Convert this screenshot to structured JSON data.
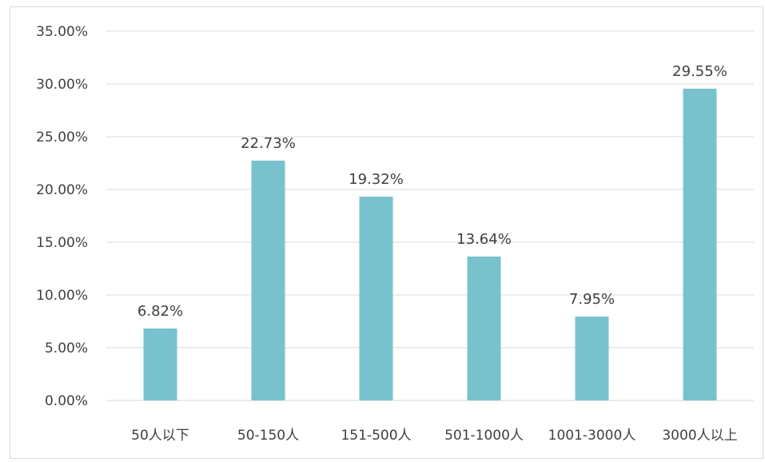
{
  "chart_data": {
    "type": "bar",
    "categories": [
      "50人以下",
      "50-150人",
      "151-500人",
      "501-1000人",
      "1001-3000人",
      "3000人以上"
    ],
    "values": [
      6.82,
      22.73,
      19.32,
      13.64,
      7.95,
      29.55
    ],
    "data_labels": [
      "6.82%",
      "22.73%",
      "19.32%",
      "13.64%",
      "7.95%",
      "29.55%"
    ],
    "ylim": [
      0,
      35
    ],
    "yticks": [
      0,
      5,
      10,
      15,
      20,
      25,
      30,
      35
    ],
    "ytick_labels": [
      "0.00%",
      "5.00%",
      "10.00%",
      "15.00%",
      "20.00%",
      "25.00%",
      "30.00%",
      "35.00%"
    ],
    "grid": true,
    "legend": "none",
    "bar_color": "#78c2cd",
    "grid_color": "#d9d9d9"
  }
}
